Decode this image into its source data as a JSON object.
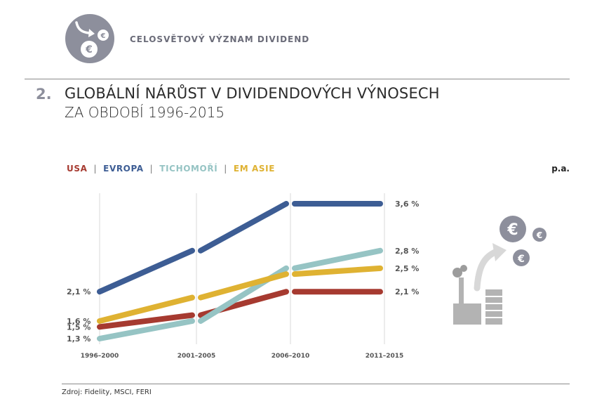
{
  "header": {
    "section_label": "CELOSVĚTOVÝ VÝZNAM DIVIDEND",
    "title_number": "2.",
    "title": "GLOBÁLNÍ NÁRŮST V DIVIDENDOVÝCH VÝNOSECH",
    "subtitle": "ZA OBDOBÍ 1996-2015"
  },
  "legend": {
    "items": [
      {
        "label": "USA",
        "color": "#a63a30"
      },
      {
        "label": "EVROPA",
        "color": "#3d5d94"
      },
      {
        "label": "TICHOMOŘÍ",
        "color": "#96c4c4"
      },
      {
        "label": "EM ASIE",
        "color": "#dfb232"
      }
    ],
    "unit": "p.a."
  },
  "chart_data": {
    "type": "line",
    "categories": [
      "1996–2000",
      "2001–2005",
      "2006–2010",
      "2011–2015"
    ],
    "series": [
      {
        "name": "USA",
        "color": "#a63a30",
        "values": [
          1.5,
          1.7,
          2.1,
          2.1
        ]
      },
      {
        "name": "EVROPA",
        "color": "#3d5d94",
        "values": [
          2.1,
          2.8,
          3.6,
          3.6
        ]
      },
      {
        "name": "TICHOMOŘÍ",
        "color": "#96c4c4",
        "values": [
          1.3,
          1.6,
          2.5,
          2.8
        ]
      },
      {
        "name": "EM ASIE",
        "color": "#dfb232",
        "values": [
          1.6,
          2.0,
          2.4,
          2.5
        ]
      }
    ],
    "start_labels": [
      "2,1 %",
      "1,6 %",
      "1,5 %",
      "1,3 %"
    ],
    "end_labels": [
      "3,6 %",
      "2,8 %",
      "2,5 %",
      "2,1 %"
    ],
    "ylim": [
      1.15,
      3.75
    ],
    "grid": "vertical"
  },
  "illustration": {
    "icons": [
      "factory-icon",
      "arrow-up-icon",
      "euro-coin-icon"
    ]
  },
  "footer": {
    "source": "Zdroj: Fidelity, MSCI, FERI"
  }
}
